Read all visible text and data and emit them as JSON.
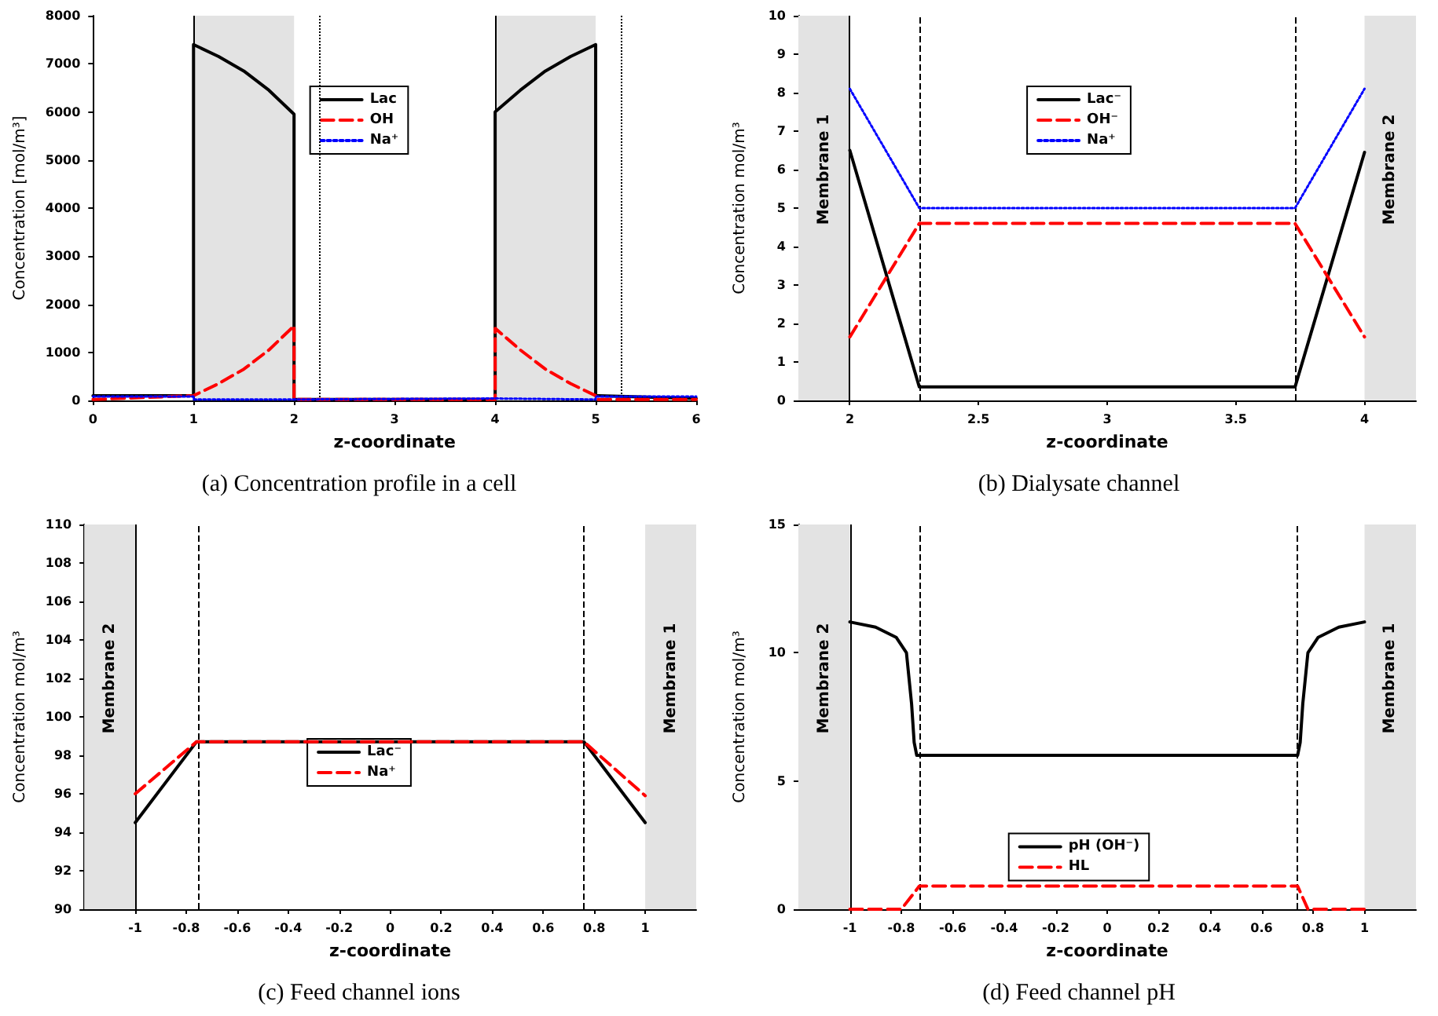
{
  "chart_data": [
    {
      "type": "line",
      "title": "(a) Concentration profile in a cell",
      "xlabel": "z-coordinate",
      "ylabel": "Concentration [mol/m³]",
      "xlim": [
        0,
        6
      ],
      "xticks": [
        0,
        1,
        2,
        3,
        4,
        5,
        6
      ],
      "ylim": [
        0,
        8000
      ],
      "yticks": [
        0,
        1000,
        2000,
        3000,
        4000,
        5000,
        6000,
        7000,
        8000
      ],
      "legend": "top",
      "grid": false,
      "bands": [
        {
          "axis": "x",
          "from": 1,
          "to": 2,
          "color": "#e3e3e3"
        },
        {
          "axis": "x",
          "from": 4,
          "to": 5,
          "color": "#e3e3e3"
        }
      ],
      "ref_lines": [
        {
          "axis": "x",
          "value": 1,
          "line_style": "solid",
          "color": "#000000"
        },
        {
          "axis": "x",
          "value": 4,
          "line_style": "solid",
          "color": "#000000"
        },
        {
          "axis": "x",
          "value": 2.25,
          "line_style": "dotted",
          "color": "#000000"
        },
        {
          "axis": "x",
          "value": 5.25,
          "line_style": "dotted",
          "color": "#000000"
        }
      ],
      "series": [
        {
          "name": "Lac",
          "color": "#000000",
          "line_style": "solid",
          "x": [
            0,
            1,
            1,
            1.25,
            1.5,
            1.75,
            2,
            2,
            4,
            4,
            4.25,
            4.5,
            4.75,
            5,
            5,
            6
          ],
          "values": [
            100,
            100,
            7400,
            7150,
            6850,
            6450,
            5950,
            20,
            20,
            6000,
            6450,
            6850,
            7150,
            7400,
            100,
            40
          ]
        },
        {
          "name": "OH",
          "color": "#ff0000",
          "line_style": "dashed",
          "x": [
            0,
            1,
            1.25,
            1.5,
            1.75,
            2,
            2,
            4,
            4,
            4.25,
            4.5,
            4.75,
            5,
            5,
            6
          ],
          "values": [
            20,
            100,
            350,
            650,
            1050,
            1550,
            20,
            20,
            1500,
            1050,
            650,
            350,
            100,
            20,
            20
          ]
        },
        {
          "name": "Na⁺",
          "color": "#0000ff",
          "line_style": "dotted",
          "x": [
            0,
            1,
            1,
            2,
            2,
            4,
            4,
            5,
            5,
            6
          ],
          "values": [
            80,
            80,
            20,
            20,
            40,
            40,
            20,
            20,
            80,
            80
          ]
        }
      ]
    },
    {
      "type": "line",
      "title": "(b) Dialysate channel",
      "xlabel": "z-coordinate",
      "ylabel": "Concentration mol/m³",
      "xlim": [
        1.8,
        4.2
      ],
      "xticks": [
        2,
        2.5,
        3,
        3.5,
        4
      ],
      "ylim": [
        0,
        10
      ],
      "yticks": [
        0,
        1,
        2,
        3,
        4,
        5,
        6,
        7,
        8,
        9,
        10
      ],
      "legend": "top",
      "grid": false,
      "bands": [
        {
          "axis": "x",
          "from": 1.8,
          "to": 2,
          "label": "Membrane 1",
          "color": "#e3e3e3"
        },
        {
          "axis": "x",
          "from": 4,
          "to": 4.2,
          "label": "Membrane 2",
          "color": "#e3e3e3"
        }
      ],
      "ref_lines": [
        {
          "axis": "x",
          "value": 2,
          "line_style": "solid",
          "color": "#000000"
        },
        {
          "axis": "x",
          "value": 2.27,
          "line_style": "dashed",
          "color": "#000000"
        },
        {
          "axis": "x",
          "value": 3.73,
          "line_style": "dashed",
          "color": "#000000"
        }
      ],
      "series": [
        {
          "name": "Lac⁻",
          "color": "#000000",
          "line_style": "solid",
          "x": [
            2,
            2.27,
            3.73,
            4
          ],
          "values": [
            6.5,
            0.35,
            0.35,
            6.45
          ]
        },
        {
          "name": "OH⁻",
          "color": "#ff0000",
          "line_style": "dashed",
          "x": [
            2,
            2.27,
            3.73,
            4
          ],
          "values": [
            1.65,
            4.6,
            4.6,
            1.65
          ]
        },
        {
          "name": "Na⁺",
          "color": "#0000ff",
          "line_style": "dotted",
          "x": [
            2,
            2.27,
            3.73,
            4
          ],
          "values": [
            8.1,
            5,
            5,
            8.1
          ]
        }
      ]
    },
    {
      "type": "line",
      "title": "(c) Feed channel ions",
      "xlabel": "z-coordinate",
      "ylabel": "Concentration mol/m³",
      "xlim": [
        -1.2,
        1.2
      ],
      "xticks": [
        -1,
        -0.8,
        -0.6,
        -0.4,
        -0.2,
        0,
        0.2,
        0.4,
        0.6,
        0.8,
        1
      ],
      "ylim": [
        90,
        110
      ],
      "yticks": [
        90,
        92,
        94,
        96,
        98,
        100,
        102,
        104,
        106,
        108,
        110
      ],
      "legend": "center",
      "grid": false,
      "bands": [
        {
          "axis": "x",
          "from": -1.2,
          "to": -1,
          "label": "Membrane 2",
          "color": "#e3e3e3"
        },
        {
          "axis": "x",
          "from": 1,
          "to": 1.2,
          "label": "Membrane 1",
          "color": "#e3e3e3"
        }
      ],
      "ref_lines": [
        {
          "axis": "x",
          "value": -1,
          "line_style": "solid",
          "color": "#000000"
        },
        {
          "axis": "x",
          "value": -0.75,
          "line_style": "dashed",
          "color": "#000000"
        },
        {
          "axis": "x",
          "value": 0.76,
          "line_style": "dashed",
          "color": "#000000"
        }
      ],
      "series": [
        {
          "name": "Lac⁻",
          "color": "#000000",
          "line_style": "solid",
          "x": [
            -1,
            -0.76,
            0.76,
            1
          ],
          "values": [
            94.5,
            98.7,
            98.7,
            94.5
          ]
        },
        {
          "name": "Na⁺",
          "color": "#ff0000",
          "line_style": "dashed",
          "x": [
            -1,
            -0.76,
            0.76,
            1
          ],
          "values": [
            96,
            98.7,
            98.7,
            95.9
          ]
        }
      ]
    },
    {
      "type": "line",
      "title": "(d) Feed channel pH",
      "xlabel": "z-coordinate",
      "ylabel": "Concentration mol/m³",
      "xlim": [
        -1.2,
        1.2
      ],
      "xticks": [
        -1,
        -0.8,
        -0.6,
        -0.4,
        -0.2,
        0,
        0.2,
        0.4,
        0.6,
        0.8,
        1
      ],
      "ylim": [
        0,
        15
      ],
      "yticks": [
        0,
        5,
        10,
        15
      ],
      "legend": "bottom",
      "grid": false,
      "bands": [
        {
          "axis": "x",
          "from": -1.2,
          "to": -1,
          "label": "Membrane 2",
          "color": "#e3e3e3"
        },
        {
          "axis": "x",
          "from": 1,
          "to": 1.2,
          "label": "Membrane 1",
          "color": "#e3e3e3"
        }
      ],
      "ref_lines": [
        {
          "axis": "x",
          "value": -1,
          "line_style": "solid",
          "color": "#000000"
        },
        {
          "axis": "x",
          "value": -0.73,
          "line_style": "dashed",
          "color": "#000000"
        },
        {
          "axis": "x",
          "value": 0.74,
          "line_style": "dashed",
          "color": "#000000"
        }
      ],
      "series": [
        {
          "name": "pH (OH⁻)",
          "color": "#000000",
          "line_style": "solid",
          "x": [
            -1,
            -0.9,
            -0.82,
            -0.78,
            -0.76,
            -0.75,
            -0.74,
            0.74,
            0.75,
            0.76,
            0.78,
            0.82,
            0.9,
            1
          ],
          "values": [
            11.2,
            11,
            10.6,
            10,
            8,
            6.5,
            6,
            6,
            6.5,
            8,
            10,
            10.6,
            11,
            11.2
          ]
        },
        {
          "name": "HL",
          "color": "#ff0000",
          "line_style": "dashed",
          "x": [
            -1,
            -0.8,
            -0.73,
            0.74,
            0.78,
            1
          ],
          "values": [
            0,
            0,
            0.9,
            0.9,
            0,
            0
          ]
        }
      ]
    }
  ]
}
